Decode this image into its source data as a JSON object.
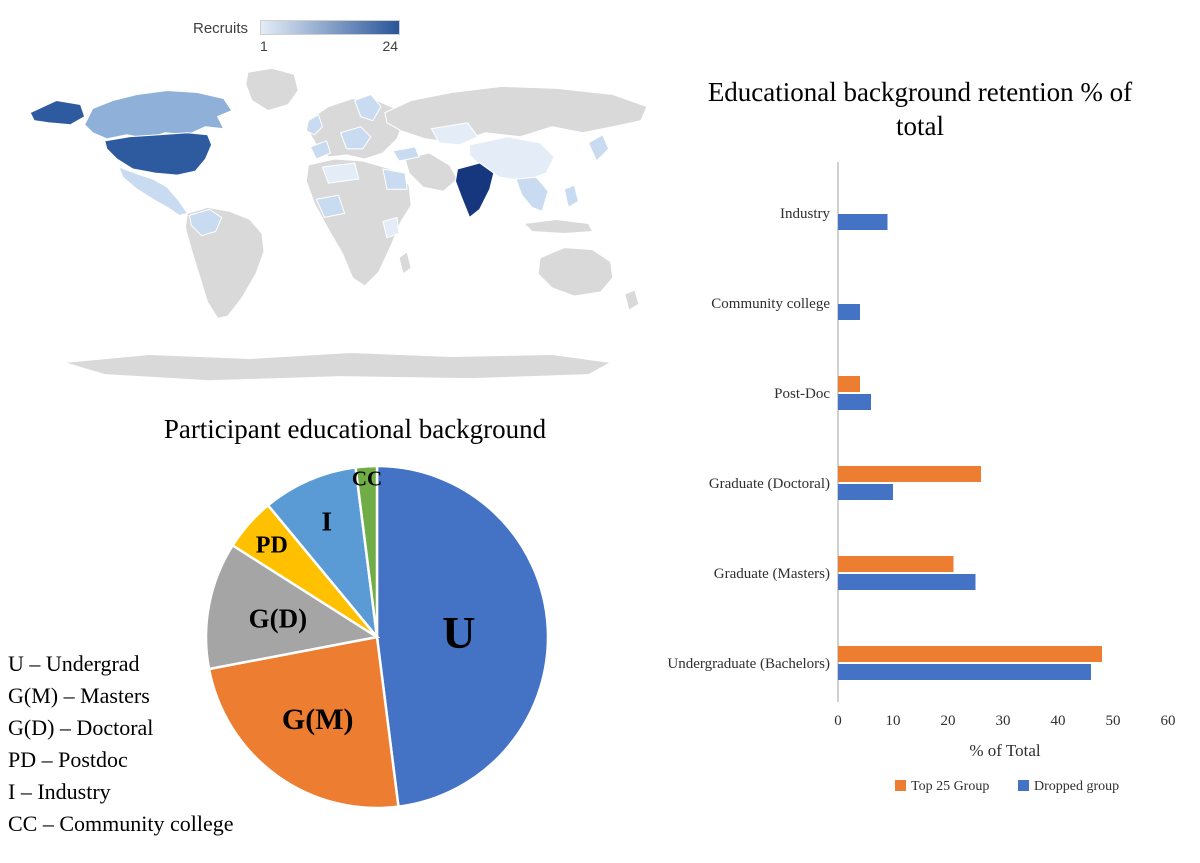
{
  "map": {
    "legend_title": "Recruits",
    "legend_min": "1",
    "legend_max": "24",
    "palette": {
      "land": "#d9d9d9",
      "s1": "#e4edf7",
      "s2": "#c9dbf0",
      "s3": "#8fb1d9",
      "s4": "#2e5b9f",
      "s5": "#16377e",
      "scale_min_color": "#e4edf7",
      "scale_max_color": "#2a5599"
    }
  },
  "chart_data": [
    {
      "type": "heatmap",
      "variant": "world-choropleth",
      "title": "Recruits",
      "scale": {
        "min": 1,
        "max": 24
      },
      "legend_position": "top-left",
      "highlights": [
        {
          "region": "India",
          "level": "darkest (near max ~24)"
        },
        {
          "region": "United States (incl. Alaska)",
          "level": "dark (high count)"
        },
        {
          "region": "Canada",
          "level": "medium"
        },
        {
          "region": "Mexico, Colombia/Ecuador, UK, Scandinavia, central Europe, Iberia, Egypt, West Africa, Turkey, Thailand/Vietnam, Philippines, Japan",
          "level": "light (low counts)"
        },
        {
          "region": "China, Kazakhstan, North Africa, Kenya",
          "level": "very light"
        },
        {
          "region": "all other countries",
          "level": "no data (gray)"
        }
      ]
    },
    {
      "type": "pie",
      "title": "Participant educational background",
      "labels": [
        "U",
        "G(M)",
        "G(D)",
        "PD",
        "I",
        "CC"
      ],
      "values": [
        48,
        24,
        12,
        5,
        9,
        2
      ],
      "values_are_estimates": true,
      "colors": [
        "#4472C4",
        "#ED7D31",
        "#A5A5A5",
        "#FFC000",
        "#5B9BD5",
        "#70AD47"
      ],
      "start_angle_deg": -90,
      "direction": "clockwise",
      "key": [
        "U – Undergrad",
        "G(M) – Masters",
        "G(D) – Doctoral",
        "PD – Postdoc",
        "I – Industry",
        "CC – Community college"
      ]
    },
    {
      "type": "bar",
      "orientation": "horizontal",
      "title": "Educational background retention % of total",
      "categories": [
        "Industry",
        "Community college",
        "Post-Doc",
        "Graduate (Doctoral)",
        "Graduate (Masters)",
        "Undergraduate (Bachelors)"
      ],
      "series": [
        {
          "name": "Top 25 Group",
          "color": "#ED7D31",
          "values": [
            0,
            0,
            4,
            26,
            21,
            48
          ]
        },
        {
          "name": "Dropped group",
          "color": "#4472C4",
          "values": [
            9,
            4,
            6,
            10,
            25,
            46
          ]
        }
      ],
      "xlabel": "% of Total",
      "xlim": [
        0,
        60
      ],
      "xticks": [
        0,
        10,
        20,
        30,
        40,
        50,
        60
      ],
      "grid": false,
      "legend_position": "bottom"
    }
  ]
}
